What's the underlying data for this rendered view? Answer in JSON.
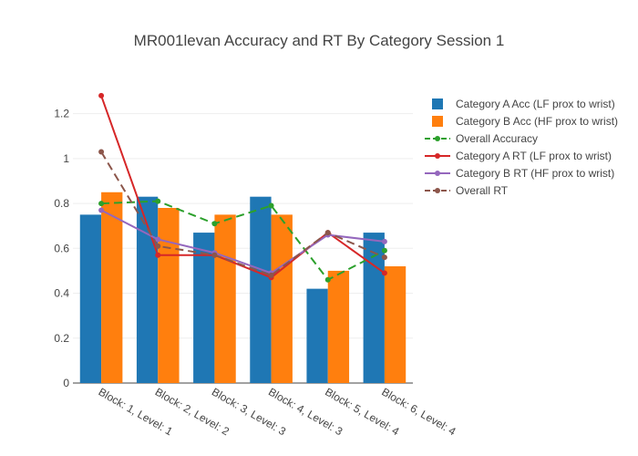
{
  "chart_data": {
    "type": "bar",
    "title": "MR001levan Accuracy and RT By Category Session 1",
    "categories": [
      "Block: 1, Level: 1",
      "Block: 2, Level: 2",
      "Block: 3, Level: 3",
      "Block: 4, Level: 3",
      "Block: 5, Level: 4",
      "Block: 6, Level: 4"
    ],
    "ylim": [
      0,
      1.3
    ],
    "yticks": [
      0,
      0.2,
      0.4,
      0.6,
      0.8,
      1,
      1.2
    ],
    "ytick_labels": [
      "0",
      "0.2",
      "0.4",
      "0.6",
      "0.8",
      "1",
      "1.2"
    ],
    "grid": true,
    "legend_position": "right",
    "series": [
      {
        "name": "Category A Acc (LF prox to wrist)",
        "kind": "bar",
        "color": "#1f77b4",
        "values": [
          0.75,
          0.83,
          0.67,
          0.83,
          0.42,
          0.67
        ]
      },
      {
        "name": "Category B Acc (HF prox to wrist)",
        "kind": "bar",
        "color": "#ff7f0e",
        "values": [
          0.85,
          0.78,
          0.75,
          0.75,
          0.5,
          0.52
        ]
      },
      {
        "name": "Overall Accuracy",
        "kind": "line",
        "dash": "dashed",
        "color": "#2ca02c",
        "values": [
          0.8,
          0.81,
          0.71,
          0.79,
          0.46,
          0.59
        ]
      },
      {
        "name": "Category A RT (LF prox to wrist)",
        "kind": "line",
        "dash": "solid",
        "color": "#d62728",
        "values": [
          1.28,
          0.57,
          0.57,
          0.47,
          0.67,
          0.49
        ]
      },
      {
        "name": "Category B RT (HF prox to wrist)",
        "kind": "line",
        "dash": "solid",
        "color": "#9467bd",
        "values": [
          0.77,
          0.64,
          0.58,
          0.49,
          0.66,
          0.63
        ]
      },
      {
        "name": "Overall RT",
        "kind": "line",
        "dash": "dashed",
        "color": "#8c564b",
        "values": [
          1.03,
          0.61,
          0.57,
          0.48,
          0.67,
          0.56
        ]
      }
    ]
  }
}
